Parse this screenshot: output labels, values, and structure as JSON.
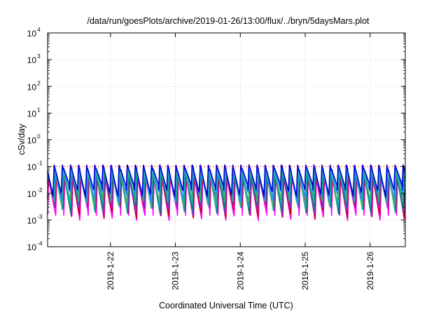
{
  "chart_data": {
    "type": "line",
    "title": "/data/run/goesPlots/archive/2019-01-26/13:00/flux/../bryn/5daysMars.plot",
    "xlabel": "Coordinated Universal Time (UTC)",
    "ylabel": "cSv/day",
    "y_scale": "log",
    "ylim": [
      0.0001,
      10000
    ],
    "y_ticks": [
      {
        "base": "10",
        "exp": "-4",
        "value": 0.0001
      },
      {
        "base": "10",
        "exp": "-3",
        "value": 0.001
      },
      {
        "base": "10",
        "exp": "-2",
        "value": 0.01
      },
      {
        "base": "10",
        "exp": "-1",
        "value": 0.1
      },
      {
        "base": "10",
        "exp": "0",
        "value": 1
      },
      {
        "base": "10",
        "exp": "1",
        "value": 10
      },
      {
        "base": "10",
        "exp": "2",
        "value": 100
      },
      {
        "base": "10",
        "exp": "3",
        "value": 1000
      },
      {
        "base": "10",
        "exp": "4",
        "value": 10000
      }
    ],
    "xlim": [
      "2019-01-21T00:45",
      "2019-01-26T13:00"
    ],
    "x_ticks": [
      "2019-1-22",
      "2019-1-23",
      "2019-1-24",
      "2019-1-25",
      "2019-1-26"
    ],
    "grid": true,
    "legend": "none",
    "reference_line": {
      "value": 0.1,
      "color": "#ff0000",
      "style": "dotted"
    },
    "series_colors": [
      "#ff00ff",
      "#cc0000",
      "#8a2be2",
      "#008080",
      "#00aaaa",
      "#3cb371",
      "#1e90ff",
      "#0000cd"
    ],
    "pulse_period_hours": 3,
    "series": [
      {
        "color": "#ff00ff",
        "peak": 0.035,
        "trough": 0.0015
      },
      {
        "color": "#cc0000",
        "peak": 0.045,
        "trough": 0.002
      },
      {
        "color": "#8a2be2",
        "peak": 0.05,
        "trough": 0.0025
      },
      {
        "color": "#008080",
        "peak": 0.06,
        "trough": 0.003
      },
      {
        "color": "#00aaaa",
        "peak": 0.07,
        "trough": 0.004
      },
      {
        "color": "#3cb371",
        "peak": 0.08,
        "trough": 0.005
      },
      {
        "color": "#1e90ff",
        "peak": 0.1,
        "trough": 0.008
      },
      {
        "color": "#0000cd",
        "peak": 0.12,
        "trough": 0.012
      }
    ]
  }
}
